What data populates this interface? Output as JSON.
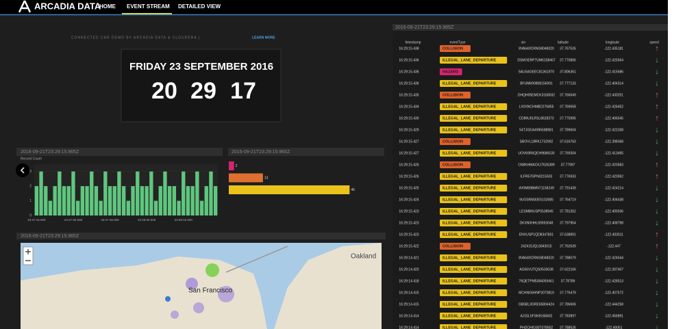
{
  "nav": {
    "brand": "ARCADIA DATA",
    "items": [
      "HOME",
      "EVENT STREAM",
      "DETAILED VIEW"
    ]
  },
  "header": {
    "caption": "CONNECTED CAR DEMO BY ARCADIA DATA & CLOUDERA |",
    "link": "LEARN MORE"
  },
  "clock": {
    "date": "FRIDAY 23 SEPTEMBER 2016",
    "hours": "20",
    "minutes": "29",
    "seconds": "17"
  },
  "chart_data": [
    {
      "type": "bar",
      "title": "2016-09-21T23:29:15.965Z",
      "y_label": "Record Count",
      "color": "#5fc77f",
      "categories": [
        "23:27:15.000",
        null,
        null,
        null,
        null,
        null,
        null,
        null,
        "23:27:30.000",
        null,
        null,
        null,
        null,
        null,
        null,
        null,
        "23:27:45.000",
        null,
        null,
        null,
        null,
        null,
        null,
        null,
        "23:28:00.000",
        null,
        null,
        null,
        null,
        null,
        null,
        null,
        "23:28:15.000",
        null,
        null,
        null,
        null,
        null,
        null,
        null
      ],
      "values": [
        2,
        3,
        2,
        1,
        2,
        3,
        2,
        2,
        3,
        1,
        2,
        2,
        3,
        2,
        1,
        3,
        2,
        2,
        3,
        2,
        1,
        2,
        3,
        2,
        2,
        3,
        1,
        2,
        3,
        2,
        2,
        1,
        3,
        2,
        2,
        3,
        1,
        2,
        3,
        2
      ],
      "ylim": [
        0,
        3.5
      ],
      "yticks": [
        0,
        1,
        2,
        3
      ]
    },
    {
      "type": "hbar",
      "title": "2016-09-21T23:29:15.965Z",
      "values": [
        2,
        13,
        46
      ],
      "colors": [
        "#d6246e",
        "#e0702f",
        "#e9c21c"
      ],
      "xlim": [
        0,
        48
      ]
    }
  ],
  "map": {
    "title": "2016-09-21T23:29:15.965Z",
    "labels": [
      "Oakland",
      "San Francisco"
    ]
  },
  "table": {
    "title": "2016-09-21T23:29:15.965Z",
    "columns": [
      "timestamp",
      "eventType",
      "vin",
      "latitude",
      "longitude",
      "speed"
    ],
    "rows": [
      {
        "timestamp": "16:29:15.438",
        "event": "COLLISION",
        "color": "#e0622a",
        "vin": "8VA640CRNG8048020",
        "lat": 37.767526,
        "lon": -122.435181,
        "speed": "↑"
      },
      {
        "timestamp": "16:29:15.436",
        "event": "ILLEGAL_LANE_DEPARTURE",
        "color": "#e9c21c",
        "vin": "DSMOERP7UM6158467",
        "lat": 37.770806,
        "lon": -122.425564,
        "speed": "↓"
      },
      {
        "timestamp": "16:29:15.436",
        "event": "HAZARD",
        "color": "#d6246e",
        "vin": "5AUS4GEEC81361970",
        "lat": 37.806361,
        "lon": -122.415686,
        "speed": "↓"
      },
      {
        "timestamp": "16:29:15.436",
        "event": "ILLEGAL_LANE_DEPARTURE",
        "color": "#e9c21c",
        "vin": "BFUM690808156991",
        "lat": 37.777133,
        "lon": -122.404314,
        "speed": "↓"
      },
      {
        "timestamp": "16:29:15.435",
        "event": "COLLISION",
        "color": "#e0622a",
        "vin": "DHQH05EMCK3168032",
        "lat": 37.766649,
        "lon": -122.430251,
        "speed": "↑"
      },
      {
        "timestamp": "16:29:15.434",
        "event": "ILLEGAL_LANE_DEPARTURE",
        "color": "#e9c21c",
        "vin": "LX0XNCHMBD276855",
        "lat": 37.769658,
        "lon": -122.426452,
        "speed": "↑"
      },
      {
        "timestamp": "16:29:15.430",
        "event": "ILLEGAL_LANE_DEPARTURE",
        "color": "#e9c21c",
        "vin": "CD89U0LRSL8628373",
        "lat": 37.775995,
        "lon": -122.406545,
        "speed": "↑"
      },
      {
        "timestamp": "16:29:15.429",
        "event": "ILLEGAL_LANE_DEPARTURE",
        "color": "#e9c21c",
        "vin": "54TJGEA4996588981",
        "lat": 37.789604,
        "lon": -122.422338,
        "speed": "↓"
      },
      {
        "timestamp": "16:29:15.427",
        "event": "COLLISION",
        "color": "#e0622a",
        "vin": "SBOVL18RK1732992",
        "lat": 37.616763,
        "lon": -122.398368,
        "speed": "↓"
      },
      {
        "timestamp": "16:29:15.427",
        "event": "ILLEGAL_LANE_DEPARTURE",
        "color": "#e9c21c",
        "vin": "UOV69R6QEH9686530",
        "lat": 37.769304,
        "lon": -122.413495,
        "speed": "↓"
      },
      {
        "timestamp": "16:29:15.426",
        "event": "COLLISION",
        "color": "#e0622a",
        "vin": "CN8KHMACKJ7626389",
        "lat": 37.77997,
        "lon": -122.420583,
        "speed": "↑"
      },
      {
        "timestamp": "16:29:15.426",
        "event": "ILLEGAL_LANE_DEPARTURE",
        "color": "#e9c21c",
        "vin": "ILFR57GPN0215503",
        "lat": 37.776933,
        "lon": -122.420062,
        "speed": "↑"
      },
      {
        "timestamp": "16:29:15.425",
        "event": "ILLEGAL_LANE_DEPARTURE",
        "color": "#e9c21c",
        "vin": "4V0M89BMN71158249",
        "lat": 37.791439,
        "lon": -122.424214,
        "speed": "↓"
      },
      {
        "timestamp": "16:29:15.424",
        "event": "ILLEGAL_LANE_DEPARTURE",
        "color": "#e9c21c",
        "vin": "9UOSRM30E5102685",
        "lat": 37.764719,
        "lon": -122.404438,
        "speed": "↓"
      },
      {
        "timestamp": "16:29:15.423",
        "event": "ILLEGAL_LANE_DEPARTURE",
        "color": "#e9c21c",
        "vin": "LESMB6USP5538945",
        "lat": 37.781352,
        "lon": -122.405936,
        "speed": "↓"
      },
      {
        "timestamp": "16:29:15.423",
        "event": "ILLEGAL_LANE_DEPARTURE",
        "color": "#e9c21c",
        "vin": "DKXN0HHL69593048",
        "lat": 37.797954,
        "lon": -122.408798,
        "speed": "↓"
      },
      {
        "timestamp": "16:29:15.423",
        "event": "ILLEGAL_LANE_DEPARTURE",
        "color": "#e9c21c",
        "vin": "ENVUSP1QD8347801",
        "lat": 37.638891,
        "lon": -122.403011,
        "speed": "↑"
      },
      {
        "timestamp": "16:29:15.422",
        "event": "COLLISION",
        "color": "#e0622a",
        "vin": "242415JQL5843015",
        "lat": 37.762639,
        "lon": -122.447,
        "speed": "↑"
      },
      {
        "timestamp": "16:29:14.421",
        "event": "ILLEGAL_LANE_DEPARTURE",
        "color": "#e9c21c",
        "vin": "8VA640CRNG8048020",
        "lat": 37.788079,
        "lon": -122.424544,
        "speed": "↓"
      },
      {
        "timestamp": "16:29:14.420",
        "event": "ILLEGAL_LANE_DEPARTURE",
        "color": "#e9c21c",
        "vin": "AG56VUTQS0503038",
        "lat": 37.622166,
        "lon": -122.397407,
        "speed": "↓"
      },
      {
        "timestamp": "16:29:14.418",
        "event": "ILLEGAL_LANE_DEPARTURE",
        "color": "#e9c21c",
        "vin": "76QETPM5384059461",
        "lat": 37.78789,
        "lon": -122.428513,
        "speed": "↓"
      },
      {
        "timestamp": "16:29:14.415",
        "event": "ILLEGAL_LANE_DEPARTURE",
        "color": "#e9c21c",
        "vin": "MCHNG6HNP2070819",
        "lat": 37.776479,
        "lon": -122.407572,
        "speed": "↓"
      },
      {
        "timestamp": "16:29:14.415",
        "event": "ILLEGAL_LANE_DEPARTURE",
        "color": "#e9c21c",
        "vin": "GB5BL3GRE65804424",
        "lat": 37.786606,
        "lon": -122.444258,
        "speed": "↓"
      },
      {
        "timestamp": "16:29:14.414",
        "event": "ILLEGAL_LANE_DEPARTURE",
        "color": "#e9c21c",
        "vin": "AJ15L5FSKB168402",
        "lat": 37.783897,
        "lon": -122.456891,
        "speed": "↓"
      },
      {
        "timestamp": "16:29:14.414",
        "event": "ILLEGAL_LANE_DEPARTURE",
        "color": "#e9c21c",
        "vin": "PHDCHIO30T078502",
        "lat": 37.788526,
        "lon": -122.40051,
        "speed": "↓"
      }
    ]
  }
}
